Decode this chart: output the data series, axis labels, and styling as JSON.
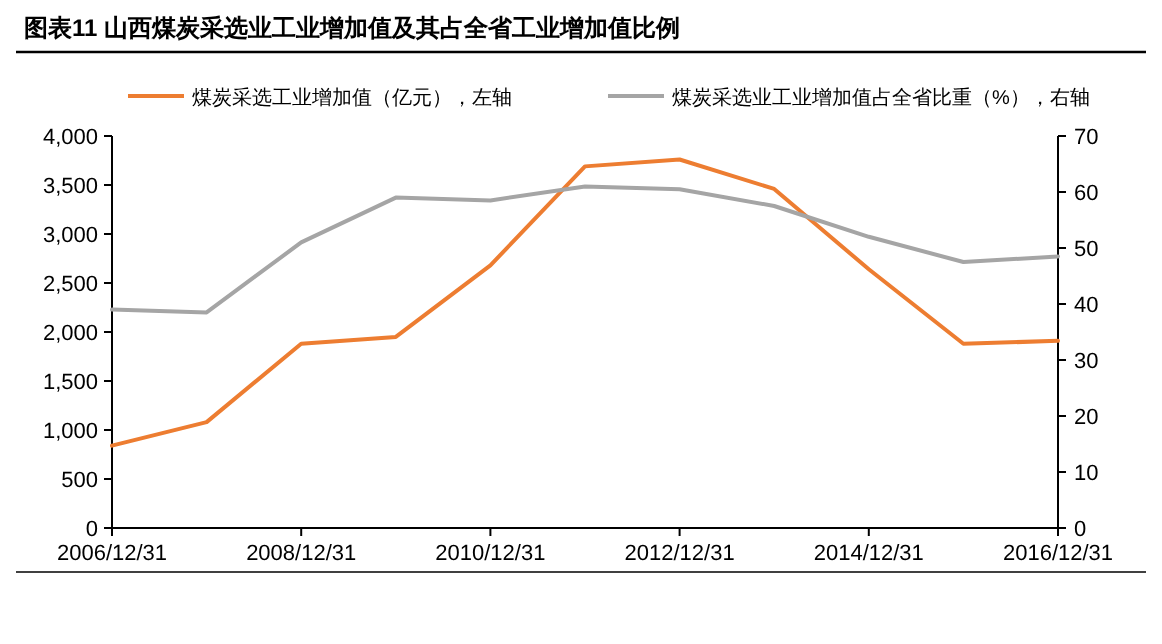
{
  "chart_data": {
    "type": "line",
    "title": "图表11   山西煤炭采选业工业增加值及其占全省工业增加值比例",
    "categories": [
      "2006/12/31",
      null,
      "2008/12/31",
      null,
      "2010/12/31",
      null,
      "2012/12/31",
      null,
      "2014/12/31",
      null,
      "2016/12/31"
    ],
    "series": [
      {
        "name": "煤炭采选工业增加值（亿元），左轴",
        "color": "#ed7d31",
        "values": [
          840,
          1080,
          1880,
          1950,
          2680,
          3690,
          3760,
          3460,
          2640,
          1880,
          1910
        ]
      },
      {
        "name": "煤炭采选业工业增加值占全省比重（%），右轴",
        "color": "#a5a5a5",
        "axis": "y2",
        "values": [
          39,
          38.5,
          51,
          59,
          58.5,
          61,
          60.5,
          57.5,
          52,
          47.5,
          48.5
        ]
      }
    ],
    "ylim": [
      0,
      4000
    ],
    "yticks": [
      {
        "value": 0,
        "label": "0"
      },
      {
        "value": 500,
        "label": "500"
      },
      {
        "value": 1000,
        "label": "1,000"
      },
      {
        "value": 1500,
        "label": "1,500"
      },
      {
        "value": 2000,
        "label": "2,000"
      },
      {
        "value": 2500,
        "label": "2,500"
      },
      {
        "value": 3000,
        "label": "3,000"
      },
      {
        "value": 3500,
        "label": "3,500"
      },
      {
        "value": 4000,
        "label": "4,000"
      }
    ],
    "y2lim": [
      0,
      70
    ],
    "y2ticks": [
      0,
      10,
      20,
      30,
      40,
      50,
      60,
      70
    ],
    "legend": "top",
    "grid": false,
    "marker": "none",
    "line_style": "solid"
  }
}
